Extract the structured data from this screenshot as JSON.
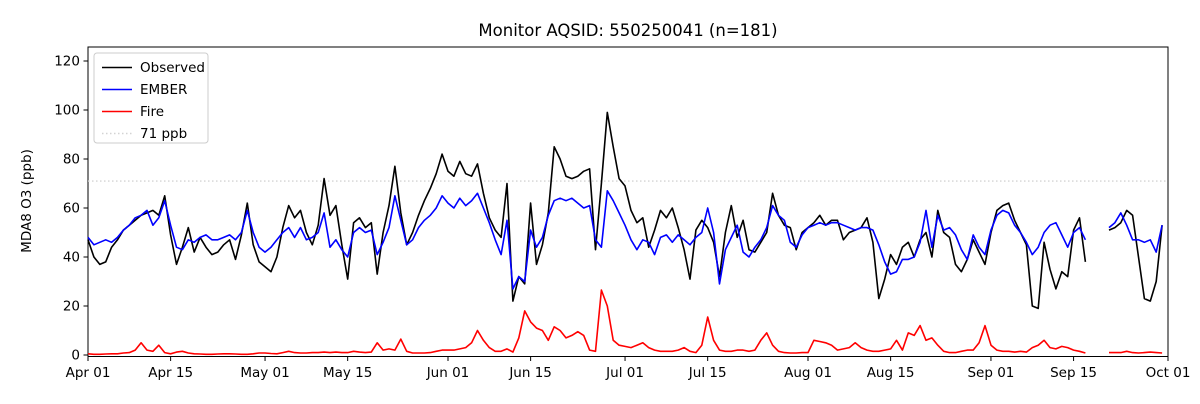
{
  "title": "Monitor AQSID: 550250041 (n=181)",
  "chart_data": {
    "type": "line",
    "title": "Monitor AQSID: 550250041 (n=181)",
    "xlabel": "",
    "ylabel": "MDA8 O3 (ppb)",
    "ylim": [
      0,
      126
    ],
    "yticks": [
      0,
      20,
      40,
      60,
      80,
      100,
      120
    ],
    "grid": false,
    "legend_position": "upper left",
    "x_days_total": 183,
    "xticks": [
      {
        "label": "Apr 01",
        "day": 0
      },
      {
        "label": "Apr 15",
        "day": 14
      },
      {
        "label": "May 01",
        "day": 30
      },
      {
        "label": "May 15",
        "day": 44
      },
      {
        "label": "Jun 01",
        "day": 61
      },
      {
        "label": "Jun 15",
        "day": 75
      },
      {
        "label": "Jul 01",
        "day": 91
      },
      {
        "label": "Jul 15",
        "day": 105
      },
      {
        "label": "Aug 01",
        "day": 122
      },
      {
        "label": "Aug 15",
        "day": 136
      },
      {
        "label": "Sep 01",
        "day": 153
      },
      {
        "label": "Sep 15",
        "day": 167
      },
      {
        "label": "Oct 01",
        "day": 183
      }
    ],
    "threshold": {
      "label": "71 ppb",
      "value": 71,
      "color": "#d3d3d3"
    },
    "series": [
      {
        "name": "Observed",
        "color": "#000000",
        "values": [
          47,
          40,
          37,
          38,
          44,
          47,
          51,
          53,
          55,
          57,
          58,
          59,
          57,
          65,
          49,
          37,
          44,
          52,
          42,
          48,
          44,
          41,
          42,
          45,
          47,
          39,
          49,
          62,
          45,
          38,
          36,
          34,
          40,
          52,
          61,
          56,
          59,
          50,
          45,
          53,
          72,
          57,
          61,
          45,
          31,
          54,
          56,
          52,
          54,
          33,
          50,
          61,
          77,
          58,
          45,
          50,
          57,
          63,
          68,
          74,
          82,
          75,
          73,
          79,
          74,
          73,
          78,
          66,
          56,
          51,
          48,
          70,
          22,
          32,
          29,
          62,
          37,
          45,
          58,
          85,
          80,
          73,
          72,
          73,
          75,
          76,
          43,
          70,
          99,
          85,
          72,
          69,
          59,
          54,
          56,
          44,
          51,
          59,
          56,
          60,
          52,
          43,
          31,
          51,
          55,
          52,
          46,
          32,
          50,
          61,
          48,
          55,
          43,
          42,
          46,
          50,
          66,
          57,
          53,
          52,
          43,
          50,
          52,
          54,
          57,
          53,
          55,
          55,
          47,
          50,
          51,
          52,
          56,
          46,
          23,
          31,
          41,
          37,
          44,
          46,
          40,
          47,
          50,
          40,
          59,
          50,
          48,
          37,
          34,
          39,
          47,
          42,
          37,
          50,
          59,
          61,
          62,
          55,
          50,
          45,
          20,
          19,
          46,
          35,
          27,
          34,
          32,
          51,
          56,
          38,
          null,
          null,
          null,
          51,
          52,
          54,
          59,
          57,
          40,
          23,
          22,
          30,
          53
        ]
      },
      {
        "name": "EMBER",
        "color": "#0000ff",
        "values": [
          48,
          45,
          46,
          47,
          46,
          48,
          51,
          53,
          56,
          57,
          59,
          53,
          56,
          63,
          53,
          44,
          43,
          47,
          46,
          48,
          49,
          47,
          47,
          48,
          49,
          47,
          50,
          59,
          50,
          44,
          42,
          44,
          47,
          50,
          52,
          48,
          52,
          47,
          48,
          50,
          58,
          44,
          47,
          43,
          40,
          50,
          52,
          50,
          51,
          41,
          46,
          52,
          65,
          55,
          45,
          47,
          52,
          55,
          57,
          60,
          65,
          62,
          60,
          64,
          61,
          63,
          66,
          60,
          54,
          47,
          41,
          55,
          27,
          32,
          30,
          51,
          44,
          48,
          57,
          63,
          64,
          63,
          64,
          62,
          60,
          61,
          47,
          44,
          67,
          63,
          58,
          53,
          47,
          43,
          47,
          46,
          41,
          48,
          49,
          46,
          49,
          47,
          45,
          48,
          50,
          60,
          50,
          29,
          43,
          48,
          53,
          42,
          40,
          44,
          47,
          52,
          61,
          57,
          55,
          46,
          44,
          49,
          52,
          53,
          54,
          53,
          54,
          54,
          53,
          52,
          51,
          52,
          52,
          51,
          45,
          38,
          33,
          34,
          39,
          39,
          40,
          46,
          59,
          44,
          57,
          51,
          52,
          49,
          43,
          39,
          49,
          44,
          41,
          51,
          57,
          59,
          58,
          53,
          50,
          46,
          41,
          44,
          50,
          53,
          54,
          49,
          44,
          50,
          52,
          47,
          null,
          null,
          null,
          52,
          54,
          58,
          53,
          47,
          47,
          46,
          47,
          42,
          53
        ]
      },
      {
        "name": "Fire",
        "color": "#ff0000",
        "values": [
          0.5,
          0.3,
          0.3,
          0.4,
          0.5,
          0.5,
          0.8,
          1,
          2,
          5,
          2,
          1.5,
          4,
          1,
          0.5,
          1.2,
          1.5,
          0.8,
          0.5,
          0.4,
          0.3,
          0.3,
          0.4,
          0.5,
          0.5,
          0.4,
          0.3,
          0.3,
          0.5,
          0.8,
          0.8,
          0.6,
          0.5,
          1,
          1.5,
          1,
          0.8,
          0.8,
          1,
          1,
          1.2,
          1,
          1.2,
          1,
          1,
          1.5,
          1.2,
          1,
          1.2,
          5,
          2,
          2.5,
          2,
          6.5,
          1.5,
          0.8,
          0.8,
          0.8,
          1,
          1.5,
          2,
          2,
          2,
          2.5,
          3,
          5,
          10,
          6,
          3,
          1.5,
          1.5,
          2.5,
          1.2,
          7,
          18,
          13.5,
          11,
          10,
          6,
          11.5,
          10,
          7,
          8,
          9.5,
          8,
          2,
          1.5,
          26.5,
          20,
          6,
          4,
          3.5,
          3,
          4,
          5,
          3,
          2,
          1.5,
          1.5,
          1.5,
          2,
          3,
          1.5,
          1,
          4,
          15.5,
          6,
          2,
          1.5,
          1.5,
          2,
          2,
          1.5,
          2,
          6,
          9,
          4,
          1.5,
          1,
          0.8,
          0.8,
          1,
          1,
          6,
          5.5,
          5,
          4,
          2,
          2.5,
          3,
          5,
          3,
          2,
          1.5,
          1.5,
          2,
          2.5,
          6,
          2,
          9,
          8,
          12,
          6,
          7,
          4,
          1.5,
          1,
          1,
          1.5,
          2,
          2,
          5,
          12,
          4,
          2,
          1.5,
          1.5,
          1.2,
          1.5,
          1.2,
          3,
          4,
          6,
          3,
          2.5,
          3.5,
          3,
          2,
          1.5,
          0.8,
          null,
          null,
          null,
          1,
          1,
          1,
          1.5,
          1,
          0.8,
          1,
          1.2,
          1,
          0.8
        ]
      }
    ]
  }
}
